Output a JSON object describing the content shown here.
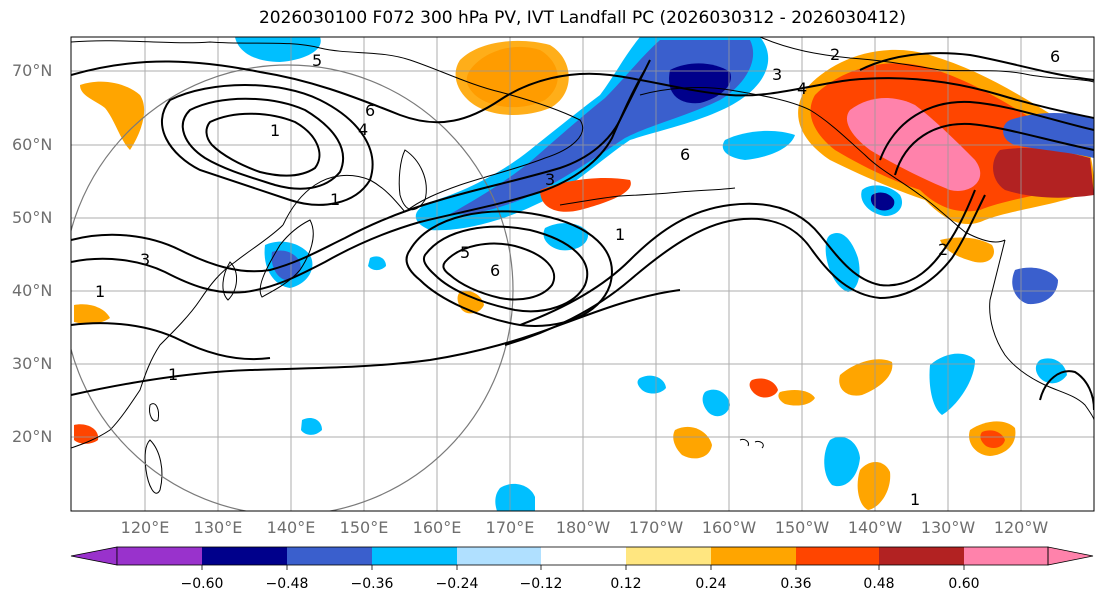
{
  "title": "2026030100 F072 300 hPa PV, IVT Landfall PC (2026030312 - 2026030412)",
  "lat_labels": [
    "70°N",
    "60°N",
    "50°N",
    "40°N",
    "30°N",
    "20°N"
  ],
  "lon_labels": [
    "120°E",
    "130°E",
    "140°E",
    "150°E",
    "160°E",
    "170°E",
    "180°W",
    "170°W",
    "160°W",
    "150°W",
    "140°W",
    "130°W",
    "120°W"
  ],
  "colorbar": {
    "ticks": [
      "−0.60",
      "−0.48",
      "−0.36",
      "−0.24",
      "−0.12",
      "0.12",
      "0.24",
      "0.36",
      "0.48",
      "0.60"
    ],
    "colors": [
      "#9932cc",
      "#00008b",
      "#3a5fcd",
      "#00bfff",
      "#b0e0ff",
      "#ffffff",
      "#ffe680",
      "#ffa500",
      "#ff4500",
      "#b22222",
      "#ff82ab"
    ]
  },
  "contour_labels": [
    "1",
    "2",
    "3",
    "4",
    "5",
    "6"
  ],
  "colors": {
    "coast": "#000000",
    "grid": "#999999",
    "circle": "#7a7a7a"
  }
}
